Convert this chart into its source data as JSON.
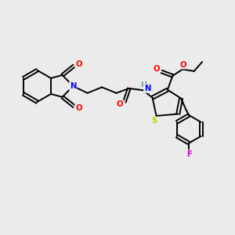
{
  "background_color": "#ebebeb",
  "bond_color": "#000000",
  "atom_colors": {
    "N": "#0000ff",
    "O": "#ff0000",
    "S": "#cccc00",
    "F": "#cc00cc",
    "H_label": "#7a9a9a",
    "C": "#000000"
  },
  "figsize": [
    3.0,
    3.0
  ],
  "dpi": 100
}
